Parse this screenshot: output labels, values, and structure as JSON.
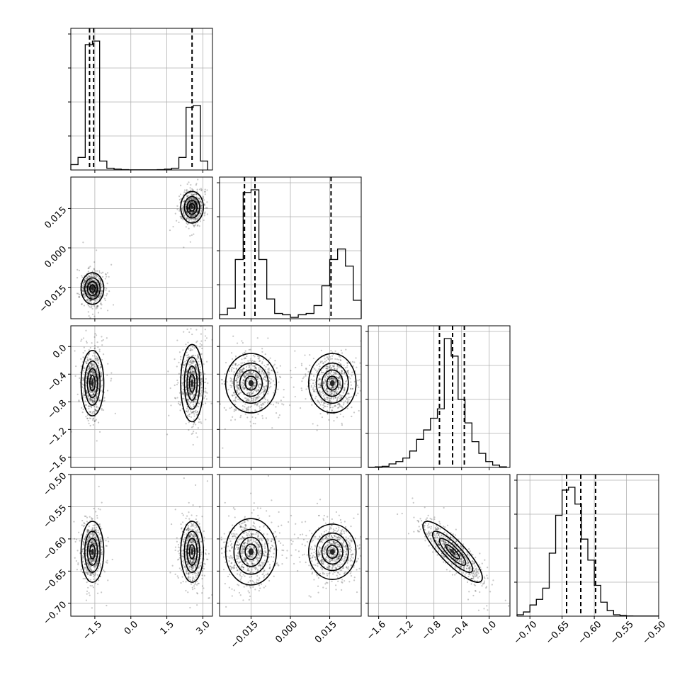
{
  "chart_data": {
    "type": "corner",
    "title": "",
    "grid": true,
    "parameters": [
      {
        "index": 0,
        "range": [
          -2.5,
          3.4
        ],
        "ticks": [
          -1.5,
          0.0,
          1.5,
          3.0
        ],
        "tick_labels": [
          "−1.5",
          "0.0",
          "1.5",
          "3.0"
        ]
      },
      {
        "index": 1,
        "range": [
          -0.027,
          0.027
        ],
        "ticks": [
          -0.015,
          0.0,
          0.015
        ],
        "tick_labels": [
          "−0.015",
          "0.000",
          "0.015"
        ]
      },
      {
        "index": 2,
        "range": [
          -1.75,
          0.3
        ],
        "ticks": [
          -1.6,
          -1.2,
          -0.8,
          -0.4,
          0.0
        ],
        "tick_labels": [
          "−1.6",
          "−1.2",
          "−0.8",
          "−0.4",
          "0.0"
        ]
      },
      {
        "index": 3,
        "range": [
          -0.72,
          -0.5
        ],
        "ticks": [
          -0.7,
          -0.65,
          -0.6,
          -0.55,
          -0.5
        ],
        "tick_labels": [
          "−0.70",
          "−0.65",
          "−0.60",
          "−0.55",
          "−0.50"
        ]
      }
    ],
    "histograms": [
      {
        "param": 0,
        "bins": [
          -2.5,
          -2.2,
          -1.9,
          -1.6,
          -1.3,
          -1.0,
          -0.7,
          -0.4,
          -0.1,
          0.2,
          0.5,
          0.8,
          1.1,
          1.4,
          1.7,
          2.0,
          2.3,
          2.6,
          2.9,
          3.2
        ],
        "counts": [
          3,
          7,
          70,
          72,
          5,
          1,
          0.5,
          0.2,
          0.1,
          0.1,
          0.1,
          0.1,
          0.2,
          0.5,
          1,
          7,
          35,
          36,
          5
        ],
        "quantiles": [
          -1.72,
          -1.55,
          2.55
        ]
      },
      {
        "param": 1,
        "bins": [
          -0.027,
          -0.024,
          -0.021,
          -0.018,
          -0.015,
          -0.012,
          -0.009,
          -0.006,
          -0.003,
          0.0,
          0.003,
          0.006,
          0.009,
          0.012,
          0.015,
          0.018,
          0.021,
          0.024,
          0.027
        ],
        "counts": [
          3,
          8,
          45,
          96,
          98,
          45,
          15,
          4,
          3,
          1,
          3,
          4,
          10,
          25,
          45,
          53,
          40,
          14
        ],
        "quantiles": [
          -0.0175,
          -0.0135,
          0.0155
        ]
      },
      {
        "param": 2,
        "bins": [
          -1.75,
          -1.65,
          -1.55,
          -1.45,
          -1.35,
          -1.25,
          -1.15,
          -1.05,
          -0.95,
          -0.85,
          -0.75,
          -0.65,
          -0.55,
          -0.45,
          -0.35,
          -0.25,
          -0.15,
          -0.05,
          0.05,
          0.15,
          0.25
        ],
        "counts": [
          0.2,
          0.5,
          1,
          3,
          5,
          8,
          14,
          24,
          32,
          42,
          50,
          110,
          95,
          58,
          38,
          22,
          12,
          5,
          2,
          0.5
        ],
        "quantiles": [
          -0.72,
          -0.53,
          -0.36
        ]
      },
      {
        "param": 3,
        "bins": [
          -0.72,
          -0.71,
          -0.7,
          -0.69,
          -0.68,
          -0.67,
          -0.66,
          -0.65,
          -0.64,
          -0.63,
          -0.62,
          -0.61,
          -0.6,
          -0.59,
          -0.58,
          -0.57,
          -0.56,
          -0.55,
          -0.54,
          -0.53,
          -0.52,
          -0.51,
          -0.5
        ],
        "counts": [
          1,
          3,
          8,
          12,
          20,
          45,
          72,
          90,
          92,
          80,
          55,
          40,
          22,
          10,
          4,
          1,
          0.5,
          0.2,
          0.1,
          0.1,
          0.1,
          0.1
        ],
        "quantiles": [
          -0.643,
          -0.621,
          -0.598
        ]
      }
    ],
    "density_2d": [
      {
        "x_param": 0,
        "y_param": 1,
        "modes": [
          {
            "center": [
              -1.6,
              -0.0155
            ],
            "sd": [
              0.22,
              0.0028
            ]
          },
          {
            "center": [
              2.55,
              0.0155
            ],
            "sd": [
              0.22,
              0.0028
            ]
          }
        ]
      },
      {
        "x_param": 0,
        "y_param": 2,
        "modes": [
          {
            "center": [
              -1.6,
              -0.53
            ],
            "sd": [
              0.22,
              0.22
            ]
          },
          {
            "center": [
              2.55,
              -0.53
            ],
            "sd": [
              0.22,
              0.26
            ]
          }
        ]
      },
      {
        "x_param": 1,
        "y_param": 2,
        "modes": [
          {
            "center": [
              -0.015,
              -0.53
            ],
            "sd": [
              0.0045,
              0.2
            ]
          },
          {
            "center": [
              0.016,
              -0.53
            ],
            "sd": [
              0.0042,
              0.2
            ]
          }
        ]
      },
      {
        "x_param": 0,
        "y_param": 3,
        "modes": [
          {
            "center": [
              -1.6,
              -0.62
            ],
            "sd": [
              0.22,
              0.022
            ]
          },
          {
            "center": [
              2.55,
              -0.62
            ],
            "sd": [
              0.22,
              0.022
            ]
          }
        ]
      },
      {
        "x_param": 1,
        "y_param": 3,
        "modes": [
          {
            "center": [
              -0.015,
              -0.62
            ],
            "sd": [
              0.0045,
              0.024
            ]
          },
          {
            "center": [
              0.016,
              -0.62
            ],
            "sd": [
              0.0042,
              0.02
            ]
          }
        ]
      },
      {
        "x_param": 2,
        "y_param": 3,
        "modes": [
          {
            "center": [
              -0.53,
              -0.62
            ],
            "sd": [
              0.2,
              0.022
            ],
            "correlation": -0.85
          }
        ]
      }
    ]
  }
}
